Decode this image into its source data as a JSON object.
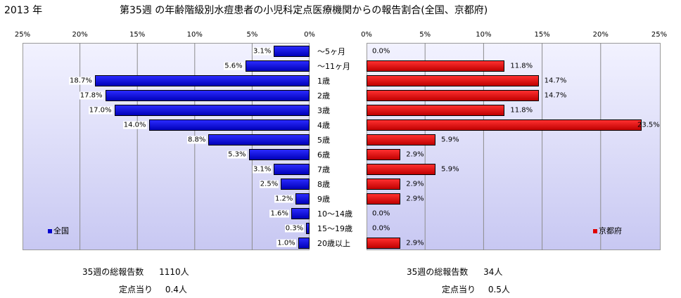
{
  "header": {
    "year": "2013 年",
    "title": "第35週 の年齢階級別水痘患者の小児科定点医療機関からの報告割合(全国、京都府)"
  },
  "colors": {
    "national": "#0000d0",
    "kyoto": "#e00000"
  },
  "chart_data": {
    "type": "bar",
    "orientation": "horizontal",
    "layout": "back-to-back",
    "categories": [
      "～5ヶ月",
      "～11ヶ月",
      "1歳",
      "2歳",
      "3歳",
      "4歳",
      "5歳",
      "6歳",
      "7歳",
      "8歳",
      "9歳",
      "10～14歳",
      "15～19歳",
      "20歳以上"
    ],
    "series": [
      {
        "name": "全国",
        "values": [
          3.1,
          5.6,
          18.7,
          17.8,
          17.0,
          14.0,
          8.8,
          5.3,
          3.1,
          2.5,
          1.2,
          1.6,
          0.3,
          1.0
        ],
        "value_labels": [
          "3.1%",
          "5.6%",
          "18.7%",
          "17.8%",
          "17.0%",
          "14.0%",
          "8.8%",
          "5.3%",
          "3.1%",
          "2.5%",
          "1.2%",
          "1.6%",
          "0.3%",
          "1.0%"
        ]
      },
      {
        "name": "京都府",
        "values": [
          0.0,
          11.8,
          14.7,
          14.7,
          11.8,
          23.5,
          5.9,
          2.9,
          5.9,
          2.9,
          2.9,
          0.0,
          0.0,
          2.9
        ],
        "value_labels": [
          "0.0%",
          "11.8%",
          "14.7%",
          "14.7%",
          "11.8%",
          "23.5%",
          "5.9%",
          "2.9%",
          "5.9%",
          "2.9%",
          "2.9%",
          "0.0%",
          "0.0%",
          "2.9%"
        ]
      }
    ],
    "xlim": [
      0,
      25
    ],
    "tick_labels_left": [
      "25%",
      "20%",
      "15%",
      "10%",
      "5%",
      "0%"
    ],
    "tick_labels_right": [
      "0%",
      "5%",
      "10%",
      "15%",
      "20%",
      "25%"
    ],
    "grid": true,
    "legend_left": "bottom-left",
    "legend_right": "bottom-right"
  },
  "stats": {
    "national": {
      "total_label": "35週の総報告数",
      "total_value": "1110人",
      "per_label": "定点当り",
      "per_value": "0.4人"
    },
    "kyoto": {
      "total_label": "35週の総報告数",
      "total_value": "34人",
      "per_label": "定点当り",
      "per_value": "0.5人"
    }
  }
}
